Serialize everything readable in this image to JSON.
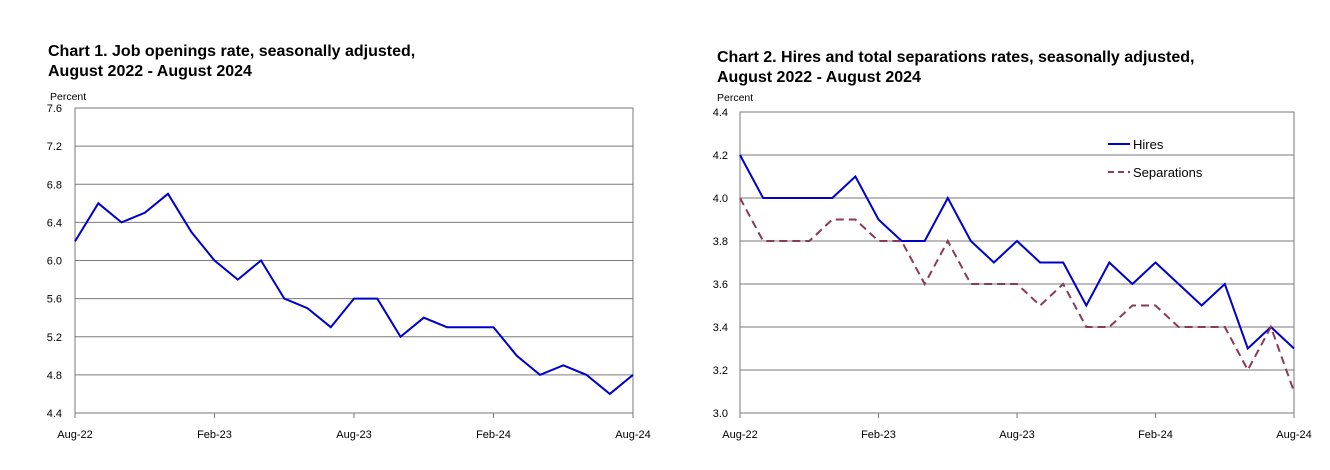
{
  "chart_data": [
    {
      "type": "line",
      "title_line1": "Chart 1. Job openings rate, seasonally adjusted,",
      "title_line2": "August 2022 - August 2024",
      "ylabel": "Percent",
      "ylim": [
        4.4,
        7.6
      ],
      "yticks": [
        "4.4",
        "4.8",
        "5.2",
        "5.6",
        "6.0",
        "6.4",
        "6.8",
        "7.2",
        "7.6"
      ],
      "xticks": [
        "Aug-22",
        "Feb-23",
        "Aug-23",
        "Feb-24",
        "Aug-24"
      ],
      "grid": true,
      "series": [
        {
          "color": "#0000cc",
          "dash": "solid",
          "values": [
            6.2,
            6.6,
            6.4,
            6.5,
            6.7,
            6.3,
            6.0,
            5.8,
            6.0,
            5.6,
            5.5,
            5.3,
            5.6,
            5.6,
            5.2,
            5.4,
            5.3,
            5.3,
            5.3,
            5.0,
            4.8,
            4.9,
            4.8,
            4.6,
            4.8
          ]
        }
      ]
    },
    {
      "type": "line",
      "title_line1": "Chart 2. Hires and total separations rates, seasonally adjusted,",
      "title_line2": "August 2022 - August 2024",
      "ylabel": "Percent",
      "ylim": [
        3.0,
        4.4
      ],
      "yticks": [
        "3.0",
        "3.2",
        "3.4",
        "3.6",
        "3.8",
        "4.0",
        "4.2",
        "4.4"
      ],
      "xticks": [
        "Aug-22",
        "Feb-23",
        "Aug-23",
        "Feb-24",
        "Aug-24"
      ],
      "grid": true,
      "legend": "top-right",
      "series": [
        {
          "name": "Hires",
          "color": "#0000cc",
          "dash": "solid",
          "values": [
            4.2,
            4.0,
            4.0,
            4.0,
            4.0,
            4.1,
            3.9,
            3.8,
            3.8,
            4.0,
            3.8,
            3.7,
            3.8,
            3.7,
            3.7,
            3.5,
            3.7,
            3.6,
            3.7,
            3.6,
            3.5,
            3.6,
            3.3,
            3.4,
            3.3
          ]
        },
        {
          "name": "Separations",
          "color": "#8b3a5a",
          "dash": "dashed",
          "values": [
            4.0,
            3.8,
            3.8,
            3.8,
            3.9,
            3.9,
            3.8,
            3.8,
            3.6,
            3.8,
            3.6,
            3.6,
            3.6,
            3.5,
            3.6,
            3.4,
            3.4,
            3.5,
            3.5,
            3.4,
            3.4,
            3.4,
            3.2,
            3.4,
            3.1
          ]
        }
      ]
    }
  ]
}
